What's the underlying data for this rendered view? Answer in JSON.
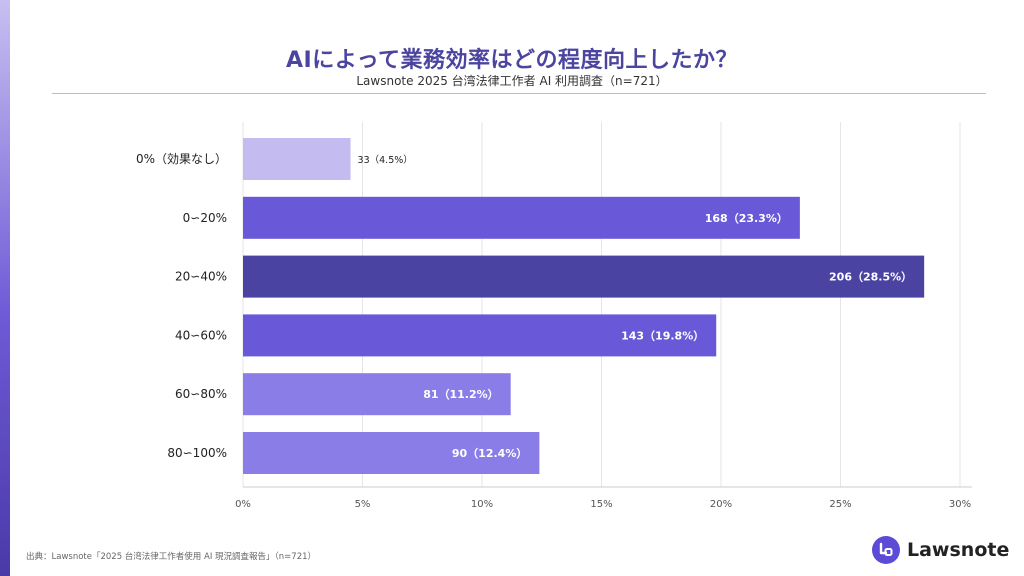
{
  "header": {
    "title": "AIによって業務効率はどの程度向上したか？",
    "subtitle": "Lawsnote 2025 台湾法律工作者 AI 利用調査（n=721）"
  },
  "footer": {
    "source": "出典：Lawsnote「2025 台湾法律工作者使用 AI 現況調査報告」（n=721）",
    "brand": "Lawsnote"
  },
  "colors": {
    "title": "#4b45a0",
    "bar_light": "#c4bcf1",
    "bar_mid": "#6959d8",
    "bar_dark": "#4a43a2",
    "bar_soft": "#8b7de8",
    "grid": "#e6e6e6",
    "brand": "#5b4bd6"
  },
  "chart_data": {
    "type": "bar",
    "orientation": "horizontal",
    "categories": [
      "0%（効果なし）",
      "0∽20%",
      "20∽40%",
      "40∽60%",
      "60∽80%",
      "80∽100%"
    ],
    "counts": [
      33,
      168,
      206,
      143,
      81,
      90
    ],
    "values": [
      4.5,
      23.3,
      28.5,
      19.8,
      11.2,
      12.4
    ],
    "value_labels": [
      "33（4.5%）",
      "168（23.3%）",
      "206（28.5%）",
      "143（19.8%）",
      "81（11.2%）",
      "90（12.4%）"
    ],
    "bar_colors": [
      "#c4bcf1",
      "#6959d8",
      "#4a43a2",
      "#6959d8",
      "#8b7de8",
      "#8b7de8"
    ],
    "xlim": [
      0,
      30
    ],
    "xticks": [
      0,
      5,
      10,
      15,
      20,
      25,
      30
    ],
    "xtick_labels": [
      "0%",
      "5%",
      "10%",
      "15%",
      "20%",
      "25%",
      "30%"
    ],
    "grid": true,
    "legend": false
  }
}
